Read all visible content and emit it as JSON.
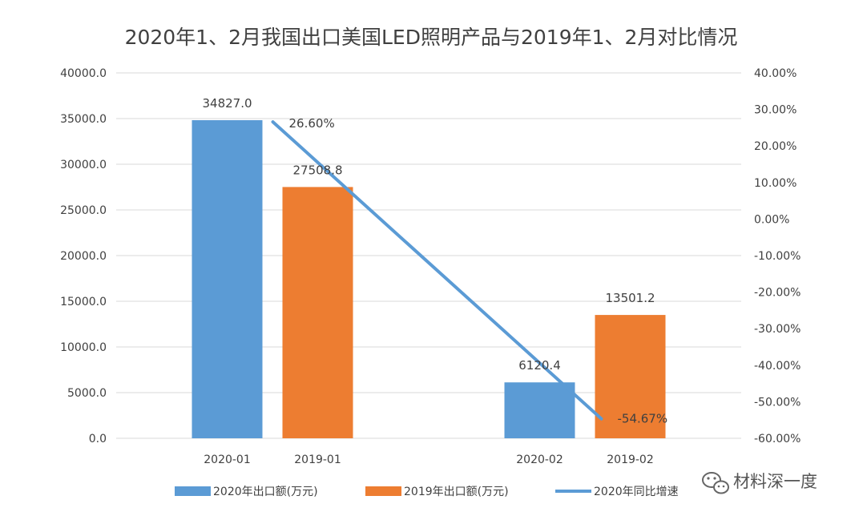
{
  "chart_data": {
    "type": "bar",
    "title": "2020年1、2月我国出口美国LED照明产品与2019年1、2月对比情况",
    "groups": [
      {
        "categories": [
          "2020-01",
          "2019-01"
        ]
      },
      {
        "categories": [
          "2020-02",
          "2019-02"
        ]
      }
    ],
    "series": [
      {
        "name": "2020年出口额(万元)",
        "type": "bar",
        "axis": "left",
        "color": "#5B9BD5",
        "values": [
          34827.0,
          6120.4
        ],
        "labels": [
          "34827.0",
          "6120.4"
        ]
      },
      {
        "name": "2019年出口额(万元)",
        "type": "bar",
        "axis": "left",
        "color": "#ED7D31",
        "values": [
          27508.8,
          13501.2
        ],
        "labels": [
          "27508.8",
          "13501.2"
        ]
      },
      {
        "name": "2020年同比增速",
        "type": "line",
        "axis": "right",
        "color": "#5B9BD5",
        "values": [
          26.6,
          -54.67
        ],
        "labels": [
          "26.60%",
          "-54.67%"
        ]
      }
    ],
    "y_left": {
      "min": 0,
      "max": 40000,
      "step": 5000,
      "ticks": [
        "0.0",
        "5000.0",
        "10000.0",
        "15000.0",
        "20000.0",
        "25000.0",
        "30000.0",
        "35000.0",
        "40000.0"
      ]
    },
    "y_right": {
      "min": -60,
      "max": 40,
      "step": 10,
      "ticks": [
        "-60.00%",
        "-50.00%",
        "-40.00%",
        "-30.00%",
        "-20.00%",
        "-10.00%",
        "0.00%",
        "10.00%",
        "20.00%",
        "30.00%",
        "40.00%"
      ]
    },
    "grid": true,
    "legend_position": "bottom"
  },
  "watermark": {
    "text": "材料深一度",
    "icon": "wechat-icon"
  }
}
